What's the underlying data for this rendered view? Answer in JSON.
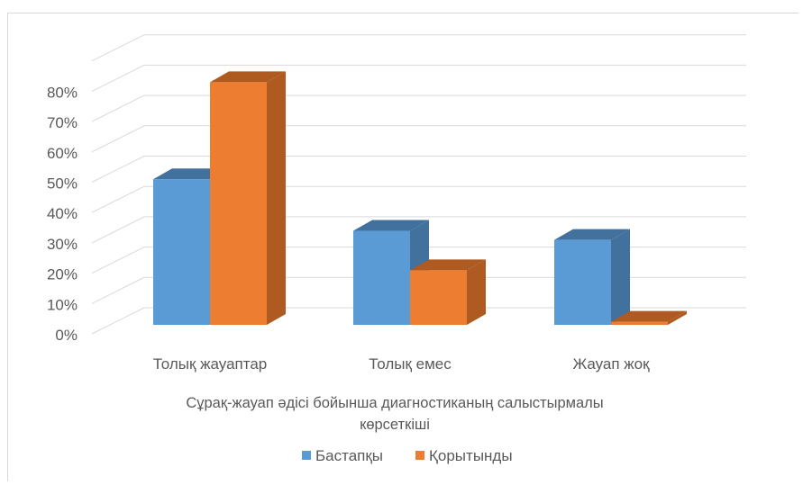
{
  "chart_data": {
    "type": "bar",
    "title_lines": [
      "Сұрақ-жауап әдісі бойынша диагностиканың салыстырмалы",
      "көрсеткіші"
    ],
    "categories": [
      "Толық жауаптар",
      "Толық емес",
      "Жауап жоқ"
    ],
    "series": [
      {
        "name": "Бастапқы",
        "values": [
          0.48,
          0.31,
          0.28
        ],
        "color": "#5b9bd5",
        "side_color": "#41719c",
        "top_color": "#41719c"
      },
      {
        "name": "Қорытынды",
        "values": [
          0.8,
          0.18,
          0.01
        ],
        "color": "#ed7d31",
        "side_color": "#ae5a21",
        "top_color": "#ae5a21"
      }
    ],
    "ytick_labels": [
      "0%",
      "10%",
      "20%",
      "30%",
      "40%",
      "50%",
      "60%",
      "70%",
      "80%"
    ],
    "ylim": [
      0,
      0.8
    ],
    "grid": true,
    "legend": "bottom",
    "three_d": true
  }
}
